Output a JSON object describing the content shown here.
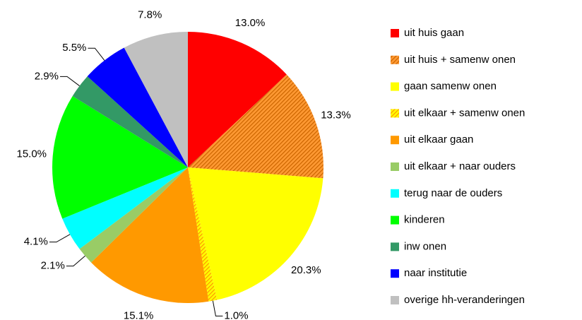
{
  "chart_data": {
    "type": "pie",
    "categories": [
      "uit huis gaan",
      "uit huis + samenw onen",
      "gaan samenw onen",
      "uit elkaar + samenw onen",
      "uit elkaar gaan",
      "uit elkaar + naar ouders",
      "terug naar de ouders",
      "kinderen",
      "inw onen",
      "naar institutie",
      "overige hh-veranderingen"
    ],
    "values": [
      13.0,
      13.3,
      20.3,
      1.0,
      15.1,
      2.1,
      4.1,
      15.0,
      2.9,
      5.5,
      7.8
    ],
    "value_labels": [
      "13.0%",
      "13.3%",
      "20.3%",
      "1.0%",
      "15.1%",
      "2.1%",
      "4.1%",
      "15.0%",
      "2.9%",
      "5.5%",
      "7.8%"
    ],
    "colors": [
      "#ff0000",
      "#ff9933",
      "#ffff00",
      "#ffff00",
      "#ff9900",
      "#99cc66",
      "#00ffff",
      "#00ff00",
      "#339966",
      "#0000ff",
      "#c0c0c0"
    ],
    "hatch": [
      null,
      "#cc6600",
      null,
      "#ff9900",
      null,
      null,
      null,
      null,
      null,
      null,
      null
    ],
    "legend": "right"
  }
}
